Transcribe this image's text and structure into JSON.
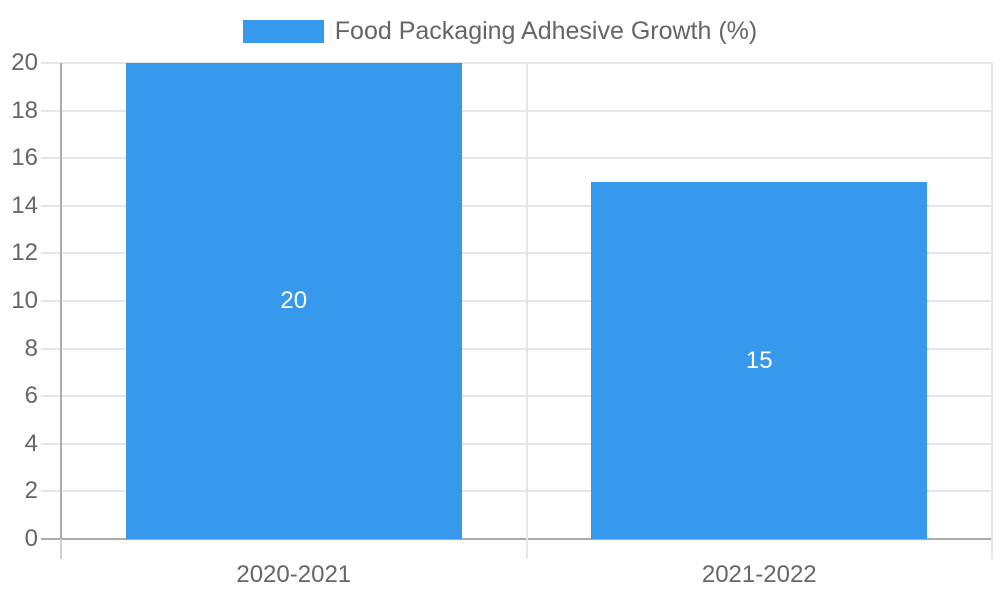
{
  "chart_data": {
    "type": "bar",
    "title": "",
    "xlabel": "",
    "ylabel": "",
    "series_name": "Food Packaging Adhesive Growth (%)",
    "categories": [
      "2020-2021",
      "2021-2022"
    ],
    "values": [
      20,
      15
    ],
    "data_labels": [
      "20",
      "15"
    ],
    "ylim": [
      0,
      20
    ],
    "ytick_step": 2,
    "yticks": [
      0,
      2,
      4,
      6,
      8,
      10,
      12,
      14,
      16,
      18,
      20
    ],
    "grid": true,
    "legend_position": "top",
    "colors": {
      "bar": "#3799EB",
      "data_label": "#FFFFFF",
      "axis_text": "#666666",
      "legend_text": "#666666",
      "gridline": "#E6E6E6",
      "axis_line": "#AAAAAA",
      "tick_mark": "#CFCFCF",
      "background": "#FFFFFF"
    }
  }
}
